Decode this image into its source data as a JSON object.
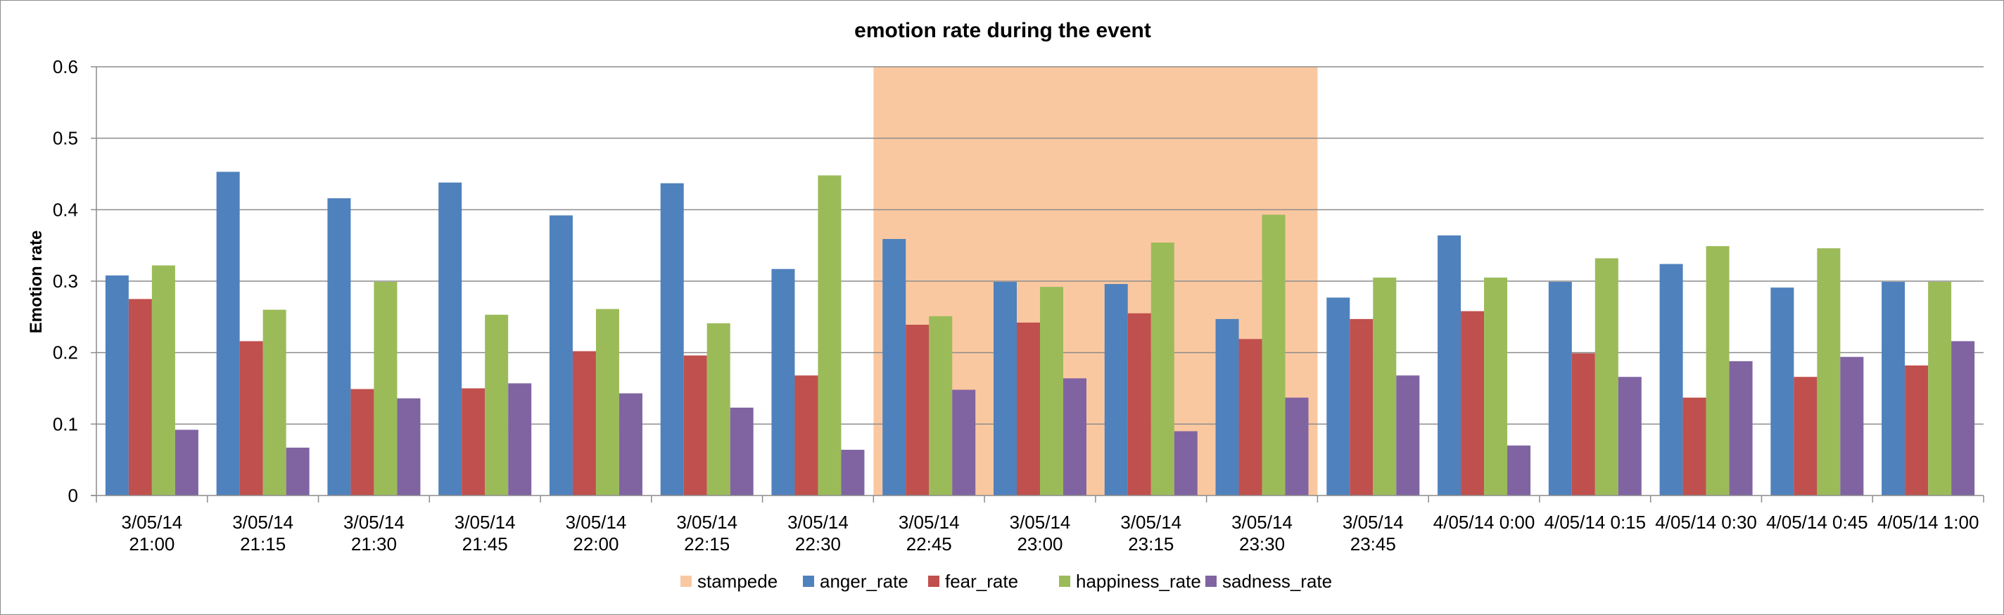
{
  "chart_data": {
    "type": "bar",
    "title": "emotion rate during the event",
    "ylabel": "Emotion rate",
    "xlabel": "",
    "ylim": [
      0,
      0.6
    ],
    "yticks": [
      "0",
      "0.1",
      "0.2",
      "0.3",
      "0.4",
      "0.5",
      "0.6"
    ],
    "grid": true,
    "legend_position": "bottom",
    "categories": [
      [
        "3/05/14",
        "21:00"
      ],
      [
        "3/05/14",
        "21:15"
      ],
      [
        "3/05/14",
        "21:30"
      ],
      [
        "3/05/14",
        "21:45"
      ],
      [
        "3/05/14",
        "22:00"
      ],
      [
        "3/05/14",
        "22:15"
      ],
      [
        "3/05/14",
        "22:30"
      ],
      [
        "3/05/14",
        "22:45"
      ],
      [
        "3/05/14",
        "23:00"
      ],
      [
        "3/05/14",
        "23:15"
      ],
      [
        "3/05/14",
        "23:30"
      ],
      [
        "3/05/14",
        "23:45"
      ],
      [
        "4/05/14 0:00"
      ],
      [
        "4/05/14 0:15"
      ],
      [
        "4/05/14 0:30"
      ],
      [
        "4/05/14 0:45"
      ],
      [
        "4/05/14 1:00"
      ]
    ],
    "highlight": {
      "name": "stampede",
      "color": "#FAC8A0",
      "from_category": 7,
      "to_category": 10
    },
    "series": [
      {
        "name": "anger_rate",
        "color": "#4F81BD",
        "values": [
          0.308,
          0.453,
          0.416,
          0.438,
          0.392,
          0.437,
          0.317,
          0.359,
          0.299,
          0.296,
          0.247,
          0.277,
          0.364,
          0.299,
          0.324,
          0.291,
          0.299
        ]
      },
      {
        "name": "fear_rate",
        "color": "#C0504D",
        "values": [
          0.275,
          0.216,
          0.149,
          0.15,
          0.202,
          0.196,
          0.168,
          0.239,
          0.242,
          0.255,
          0.219,
          0.247,
          0.258,
          0.199,
          0.137,
          0.166,
          0.182
        ]
      },
      {
        "name": "happiness_rate",
        "color": "#9BBB59",
        "values": [
          0.322,
          0.26,
          0.299,
          0.253,
          0.261,
          0.241,
          0.448,
          0.251,
          0.292,
          0.354,
          0.393,
          0.305,
          0.305,
          0.332,
          0.349,
          0.346,
          0.299
        ]
      },
      {
        "name": "sadness_rate",
        "color": "#8064A2",
        "values": [
          0.092,
          0.067,
          0.136,
          0.157,
          0.143,
          0.123,
          0.064,
          0.148,
          0.164,
          0.09,
          0.137,
          0.168,
          0.07,
          0.166,
          0.188,
          0.194,
          0.216
        ]
      }
    ]
  }
}
